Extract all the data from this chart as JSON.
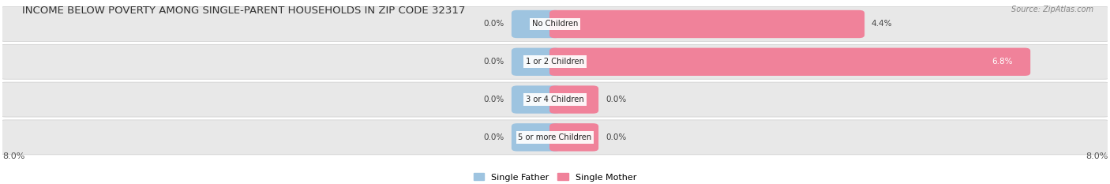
{
  "title": "INCOME BELOW POVERTY AMONG SINGLE-PARENT HOUSEHOLDS IN ZIP CODE 32317",
  "source": "Source: ZipAtlas.com",
  "categories": [
    "No Children",
    "1 or 2 Children",
    "3 or 4 Children",
    "5 or more Children"
  ],
  "single_father": [
    0.0,
    0.0,
    0.0,
    0.0
  ],
  "single_mother": [
    4.4,
    6.8,
    0.0,
    0.0
  ],
  "father_color": "#9ec4e0",
  "mother_color": "#f0829a",
  "row_bg_color": "#e8e8e8",
  "title_fontsize": 9.5,
  "axis_max": 8.0,
  "legend_father": "Single Father",
  "legend_mother": "Single Mother",
  "axis_label_left": "8.0%",
  "axis_label_right": "8.0%",
  "father_stub": 0.55,
  "mother_stub": 0.55
}
